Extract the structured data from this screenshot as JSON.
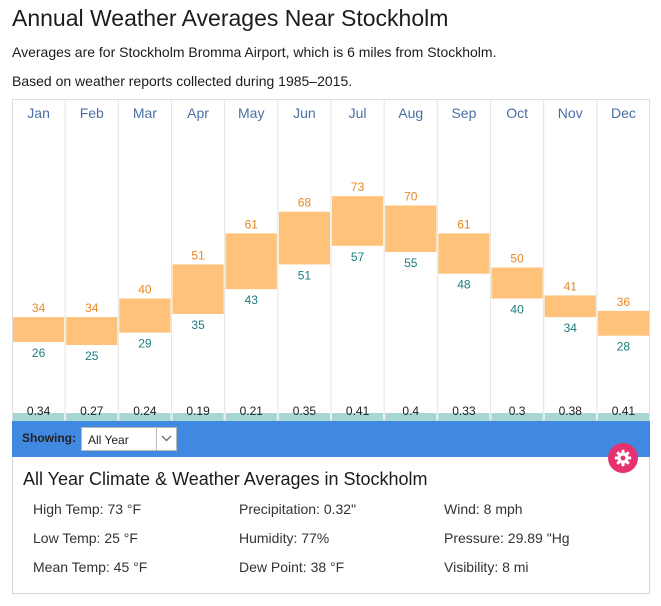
{
  "title": "Annual Weather Averages Near Stockholm",
  "subtitle1": "Averages are for Stockholm Bromma Airport, which is 6 miles from Stockholm.",
  "subtitle2": "Based on weather reports collected during 1985–2015.",
  "colors": {
    "bar": "#ffc27a",
    "high_label": "#e8861f",
    "low_label": "#1a7d7d",
    "month_label": "#4a6fa5",
    "precip": "#a8d7d1",
    "showing_bar": "#4189e0",
    "gear_button": "#e5316f"
  },
  "chart_data": {
    "type": "bar",
    "categories": [
      "Jan",
      "Feb",
      "Mar",
      "Apr",
      "May",
      "Jun",
      "Jul",
      "Aug",
      "Sep",
      "Oct",
      "Nov",
      "Dec"
    ],
    "series": [
      {
        "values": [
          34,
          34,
          40,
          51,
          61,
          68,
          73,
          70,
          61,
          50,
          41,
          36
        ]
      },
      {
        "values": [
          26,
          25,
          29,
          35,
          43,
          51,
          57,
          55,
          48,
          40,
          34,
          28
        ]
      }
    ],
    "precipitation": [
      "0.34",
      "0.27",
      "0.24",
      "0.19",
      "0.21",
      "0.35",
      "0.41",
      "0.4",
      "0.33",
      "0.3",
      "0.38",
      "0.41"
    ]
  },
  "controls": {
    "showing_label": "Showing:",
    "select_value": "All Year",
    "gear_icon": "gear-icon",
    "dropdown_icon": "chevron-down-icon"
  },
  "summary": {
    "title": "All Year Climate & Weather Averages in Stockholm",
    "high_temp": "High Temp: 73 °F",
    "low_temp": "Low Temp: 25 °F",
    "mean_temp": "Mean Temp: 45 °F",
    "precipitation": "Precipitation: 0.32\"",
    "humidity": "Humidity: 77%",
    "dew_point": "Dew Point: 38 °F",
    "wind": "Wind: 8 mph",
    "pressure": "Pressure: 29.89 \"Hg",
    "visibility": "Visibility: 8 mi"
  }
}
